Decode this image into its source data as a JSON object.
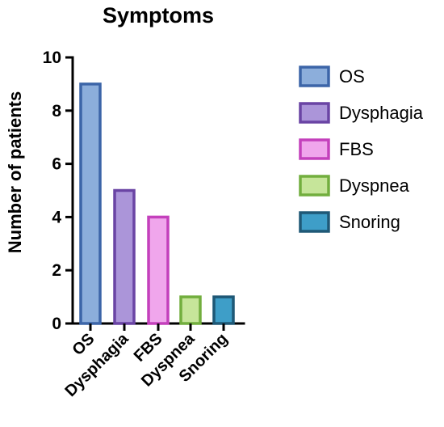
{
  "chart_data": {
    "type": "bar",
    "title": "Symptoms",
    "xlabel": "",
    "ylabel": "Number of patients",
    "ylim": [
      0,
      10
    ],
    "yticks": [
      0,
      2,
      4,
      6,
      8,
      10
    ],
    "categories": [
      "OS",
      "Dysphagia",
      "FBS",
      "Dyspnea",
      "Snoring"
    ],
    "values": [
      9,
      5,
      4,
      1,
      1
    ],
    "grid": false,
    "legend_position": "right",
    "legend": [
      "OS",
      "Dysphagia",
      "FBS",
      "Dyspnea",
      "Snoring"
    ],
    "colors": {
      "fill": [
        "#8caedb",
        "#ab95d9",
        "#f0a6ec",
        "#c6e59a",
        "#3e9ec8"
      ],
      "stroke": [
        "#3c65a8",
        "#6a44a4",
        "#c440bc",
        "#72ae3e",
        "#1f5876"
      ]
    }
  }
}
